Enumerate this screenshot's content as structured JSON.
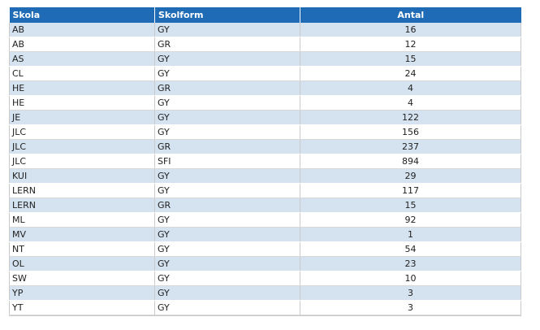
{
  "table": {
    "headers": {
      "school": "Skola",
      "form": "Skolform",
      "count": "Antal"
    },
    "rows": [
      {
        "school": "AB",
        "form": "GY",
        "count": "16"
      },
      {
        "school": "AB",
        "form": "GR",
        "count": "12"
      },
      {
        "school": "AS",
        "form": "GY",
        "count": "15"
      },
      {
        "school": "CL",
        "form": "GY",
        "count": "24"
      },
      {
        "school": "HE",
        "form": "GR",
        "count": "4"
      },
      {
        "school": "HE",
        "form": "GY",
        "count": "4"
      },
      {
        "school": "JE",
        "form": "GY",
        "count": "122"
      },
      {
        "school": "JLC",
        "form": "GY",
        "count": "156"
      },
      {
        "school": "JLC",
        "form": "GR",
        "count": "237"
      },
      {
        "school": "JLC",
        "form": "SFI",
        "count": "894"
      },
      {
        "school": "KUI",
        "form": "GY",
        "count": "29"
      },
      {
        "school": "LERN",
        "form": "GY",
        "count": "117"
      },
      {
        "school": "LERN",
        "form": "GR",
        "count": "15"
      },
      {
        "school": "ML",
        "form": "GY",
        "count": "92"
      },
      {
        "school": "MV",
        "form": "GY",
        "count": "1"
      },
      {
        "school": "NT",
        "form": "GY",
        "count": "54"
      },
      {
        "school": "OL",
        "form": "GY",
        "count": "23"
      },
      {
        "school": "SW",
        "form": "GY",
        "count": "10"
      },
      {
        "school": "YP",
        "form": "GY",
        "count": "3"
      },
      {
        "school": "YT",
        "form": "GY",
        "count": "3"
      }
    ]
  },
  "colors": {
    "header_bg": "#1f6bb5",
    "row_stripe": "#d5e3f1"
  }
}
